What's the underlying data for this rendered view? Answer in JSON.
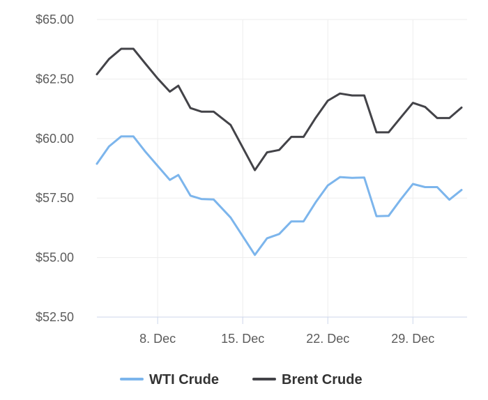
{
  "chart_data": {
    "type": "line",
    "title": "",
    "xlabel": "",
    "ylabel": "",
    "ylim": [
      52.5,
      65.0
    ],
    "y_ticks": [
      "$52.50",
      "$55.00",
      "$57.50",
      "$60.00",
      "$62.50",
      "$65.00"
    ],
    "y_tick_values": [
      52.5,
      55.0,
      57.5,
      60.0,
      62.5,
      65.0
    ],
    "x_ticks": [
      "8. Dec",
      "15. Dec",
      "22. Dec",
      "29. Dec"
    ],
    "x_tick_days": [
      8,
      15,
      22,
      29
    ],
    "x_range_days": [
      3,
      33
    ],
    "grid": true,
    "legend_position": "bottom-center",
    "series": [
      {
        "name": "WTI Crude",
        "color": "#7cb5ec",
        "points": [
          {
            "x": 3,
            "y": 58.94
          },
          {
            "x": 4,
            "y": 59.67
          },
          {
            "x": 5,
            "y": 60.09
          },
          {
            "x": 6,
            "y": 60.09
          },
          {
            "x": 7,
            "y": 59.44
          },
          {
            "x": 8,
            "y": 58.85
          },
          {
            "x": 9,
            "y": 58.26
          },
          {
            "x": 9.7,
            "y": 58.47
          },
          {
            "x": 10.7,
            "y": 57.6
          },
          {
            "x": 11.6,
            "y": 57.46
          },
          {
            "x": 12.6,
            "y": 57.44
          },
          {
            "x": 14,
            "y": 56.68
          },
          {
            "x": 16,
            "y": 55.11
          },
          {
            "x": 17,
            "y": 55.81
          },
          {
            "x": 18,
            "y": 55.99
          },
          {
            "x": 19,
            "y": 56.52
          },
          {
            "x": 20,
            "y": 56.52
          },
          {
            "x": 21,
            "y": 57.32
          },
          {
            "x": 22,
            "y": 58.03
          },
          {
            "x": 23,
            "y": 58.38
          },
          {
            "x": 24,
            "y": 58.35
          },
          {
            "x": 25,
            "y": 58.36
          },
          {
            "x": 26,
            "y": 56.74
          },
          {
            "x": 27,
            "y": 56.75
          },
          {
            "x": 28,
            "y": 57.44
          },
          {
            "x": 29,
            "y": 58.09
          },
          {
            "x": 30,
            "y": 57.96
          },
          {
            "x": 31,
            "y": 57.96
          },
          {
            "x": 32,
            "y": 57.43
          },
          {
            "x": 33,
            "y": 57.84
          }
        ]
      },
      {
        "name": "Brent Crude",
        "color": "#434348",
        "points": [
          {
            "x": 3,
            "y": 62.7
          },
          {
            "x": 4,
            "y": 63.34
          },
          {
            "x": 5,
            "y": 63.77
          },
          {
            "x": 6,
            "y": 63.77
          },
          {
            "x": 7,
            "y": 63.14
          },
          {
            "x": 8,
            "y": 62.52
          },
          {
            "x": 9,
            "y": 61.97
          },
          {
            "x": 9.7,
            "y": 62.22
          },
          {
            "x": 10.7,
            "y": 61.28
          },
          {
            "x": 11.6,
            "y": 61.13
          },
          {
            "x": 12.6,
            "y": 61.13
          },
          {
            "x": 14,
            "y": 60.57
          },
          {
            "x": 16,
            "y": 58.67
          },
          {
            "x": 17,
            "y": 59.42
          },
          {
            "x": 18,
            "y": 59.52
          },
          {
            "x": 19,
            "y": 60.07
          },
          {
            "x": 20,
            "y": 60.07
          },
          {
            "x": 21,
            "y": 60.87
          },
          {
            "x": 22,
            "y": 61.59
          },
          {
            "x": 23,
            "y": 61.89
          },
          {
            "x": 24,
            "y": 61.81
          },
          {
            "x": 25,
            "y": 61.81
          },
          {
            "x": 26,
            "y": 60.26
          },
          {
            "x": 27,
            "y": 60.26
          },
          {
            "x": 28,
            "y": 60.88
          },
          {
            "x": 29,
            "y": 61.5
          },
          {
            "x": 30,
            "y": 61.33
          },
          {
            "x": 31,
            "y": 60.86
          },
          {
            "x": 32,
            "y": 60.86
          },
          {
            "x": 33,
            "y": 61.3
          }
        ]
      }
    ]
  }
}
